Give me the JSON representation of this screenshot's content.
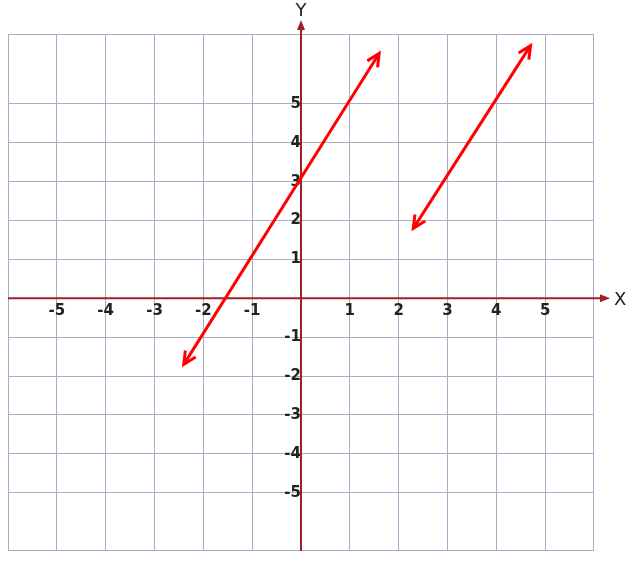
{
  "chart_data": {
    "type": "line",
    "x_label": "X",
    "y_label": "Y",
    "series": [
      {
        "color": "#ff0000",
        "marker": "arrow",
        "line_style": "solid",
        "x": [
          -2.4,
          1.6
        ],
        "values": [
          -1.7,
          6.3
        ]
      },
      {
        "color": "#ff0000",
        "marker": "arrow",
        "line_style": "solid",
        "x": [
          2.3,
          4.7
        ],
        "values": [
          1.8,
          6.5
        ]
      }
    ],
    "xlim": [
      -6,
      6
    ],
    "ylim": [
      -6.5,
      6.8
    ],
    "xticks": [
      -5,
      -4,
      -3,
      -2,
      -1,
      1,
      2,
      3,
      4,
      5
    ],
    "yticks": [
      -5,
      -4,
      -3,
      -2,
      -1,
      1,
      2,
      3,
      4,
      5
    ],
    "grid": true
  }
}
